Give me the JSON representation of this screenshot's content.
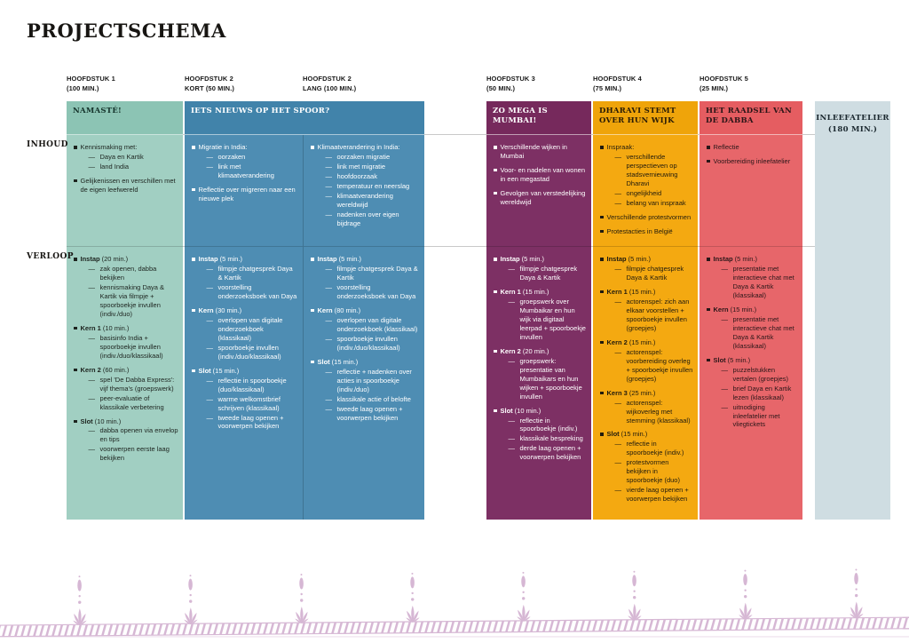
{
  "title": "PROJECTSCHEMA",
  "row_labels": {
    "inhoud": "INHOUD",
    "verloop": "VERLOOP"
  },
  "columns": [
    {
      "id": "h1",
      "header": [
        "HOOFDSTUK 1",
        "(100 MIN.)"
      ],
      "banner": "NAMASTÉ!",
      "colors": {
        "banner_bg": "#8cc4b4",
        "banner_text": "#15332b",
        "body_bg": "#a1cfc2",
        "text": "#1d241f"
      },
      "inhoud": [
        {
          "t": "Kennismaking met:",
          "subs": [
            "Daya en Kartik",
            "land India"
          ]
        },
        {
          "t": "Gelijkenissen en verschillen met de eigen leefwereld",
          "subs": []
        }
      ],
      "verloop": [
        {
          "b": "Instap",
          "t": "(20 min.)",
          "subs": [
            "zak openen, dabba bekijken",
            "kennismaking Daya & Kartik via filmpje + spoorboekje invullen (indiv./duo)"
          ]
        },
        {
          "b": "Kern 1",
          "t": "(10 min.)",
          "subs": [
            "basisinfo India + spoorboekje invullen (indiv./duo/klassikaal)"
          ]
        },
        {
          "b": "Kern 2",
          "t": "(60 min.)",
          "subs": [
            "spel 'De Dabba Express': vijf thema's (groepswerk)",
            "peer-evaluatie of klassikale verbetering"
          ]
        },
        {
          "b": "Slot",
          "t": "(10 min.)",
          "subs": [
            "dabba openen via envelop en tips",
            "voorwerpen eerste laag bekijken"
          ]
        }
      ]
    },
    {
      "id": "h2k",
      "header": [
        "HOOFDSTUK 2",
        "KORT (50 MIN.)"
      ],
      "banner": "IETS NIEUWS OP HET SPOOR?",
      "banner_span": "h2l",
      "colors": {
        "banner_bg": "#4183aa",
        "banner_text": "#ffffff",
        "body_bg": "#4e8db3",
        "text": "#ffffff"
      },
      "inhoud": [
        {
          "t": "Migratie in India:",
          "subs": [
            "oorzaken",
            "link met klimaatverandering"
          ]
        },
        {
          "t": "Reflectie over migreren naar een nieuwe plek",
          "subs": []
        }
      ],
      "verloop": [
        {
          "b": "Instap",
          "t": "(5 min.)",
          "subs": [
            "filmpje chatgesprek Daya & Kartik",
            "voorstelling onderzoeksboek van Daya"
          ]
        },
        {
          "b": "Kern",
          "t": "(30 min.)",
          "subs": [
            "overlopen van digitale onderzoekboek (klassikaal)",
            "spoorboekje invullen (indiv./duo/klassikaal)"
          ]
        },
        {
          "b": "Slot",
          "t": "(15 min.)",
          "subs": [
            "reflectie in spoorboekje (duo/klassikaal)",
            "warme welkomstbrief schrijven (klassikaal)",
            "tweede laag openen + voorwerpen bekijken"
          ]
        }
      ]
    },
    {
      "id": "h2l",
      "header": [
        "HOOFDSTUK 2",
        "LANG (100 MIN.)"
      ],
      "banner": null,
      "colors": {
        "body_bg": "#4e8db3",
        "text": "#ffffff"
      },
      "inhoud": [
        {
          "t": "Klimaatverandering in India:",
          "subs": [
            "oorzaken migratie",
            "link met migratie",
            "hoofdoorzaak",
            "temperatuur en neerslag",
            "klimaatverandering wereldwijd",
            "nadenken over eigen bijdrage"
          ]
        }
      ],
      "verloop": [
        {
          "b": "Instap",
          "t": "(5 min.)",
          "subs": [
            "filmpje chatgesprek Daya & Kartik",
            "voorstelling onderzoeksboek van Daya"
          ]
        },
        {
          "b": "Kern",
          "t": "(80 min.)",
          "subs": [
            "overlopen van digitale onderzoekboek (klassikaal)",
            "spoorboekje invullen (indiv./duo/klassikaal)"
          ]
        },
        {
          "b": "Slot",
          "t": "(15 min.)",
          "subs": [
            "reflectie + nadenken over acties in spoorboekje (indiv./duo)",
            "klassikale actie of belofte",
            "tweede laag openen + voorwerpen bekijken"
          ]
        }
      ]
    },
    {
      "id": "h3",
      "header": [
        "HOOFDSTUK 3",
        "(50 MIN.)"
      ],
      "banner": "ZO MEGA IS MUMBAI!",
      "colors": {
        "banner_bg": "#76295c",
        "banner_text": "#ffffff",
        "body_bg": "#7d3064",
        "text": "#ffffff"
      },
      "inhoud": [
        {
          "t": "Verschillende wijken in Mumbai",
          "subs": []
        },
        {
          "t": "Voor- en nadelen van wonen in een megastad",
          "subs": []
        },
        {
          "t": "Gevolgen van verstedelijking wereldwijd",
          "subs": []
        }
      ],
      "verloop": [
        {
          "b": "Instap",
          "t": "(5 min.)",
          "subs": [
            "filmpje chatgesprek Daya & Kartik"
          ]
        },
        {
          "b": "Kern 1",
          "t": "(15 min.)",
          "subs": [
            "groepswerk over Mumbaikar en hun wijk via digitaal leerpad + spoorboekje invullen"
          ]
        },
        {
          "b": "Kern 2",
          "t": "(20 min.)",
          "subs": [
            "groepswerk: presentatie van Mumbaikars en hun wijken + spoorboekje invullen"
          ]
        },
        {
          "b": "Slot",
          "t": "(10 min.)",
          "subs": [
            "reflectie in spoorboekje (indiv.)",
            "klassikale bespreking",
            "derde laag openen + voorwerpen bekijken"
          ]
        }
      ]
    },
    {
      "id": "h4",
      "header": [
        "HOOFDSTUK 4",
        "(75 MIN.)"
      ],
      "banner": "DHARAVI STEMT OVER HUN WIJK",
      "colors": {
        "banner_bg": "#efa40a",
        "banner_text": "#2b1d06",
        "body_bg": "#f4a911",
        "text": "#211b0e"
      },
      "inhoud": [
        {
          "t": "Inspraak:",
          "subs": [
            "verschillende perspectieven op stadsvernieuwing Dharavi",
            "ongelijkheid",
            "belang van inspraak"
          ]
        },
        {
          "t": "Verschillende protestvormen",
          "subs": []
        },
        {
          "t": "Protestacties in België",
          "subs": []
        }
      ],
      "verloop": [
        {
          "b": "Instap",
          "t": "(5 min.)",
          "subs": [
            "filmpje chatgesprek Daya & Kartik"
          ]
        },
        {
          "b": "Kern 1",
          "t": "(15 min.)",
          "subs": [
            "actorenspel: zich aan elkaar voorstellen + spoorboekje invullen (groepjes)"
          ]
        },
        {
          "b": "Kern 2",
          "t": "(15 min.)",
          "subs": [
            "actorenspel: voorbereiding overleg + spoorboekje invullen (groepjes)"
          ]
        },
        {
          "b": "Kern 3",
          "t": "(25 min.)",
          "subs": [
            "actorenspel: wijkoverleg met stemming (klassikaal)"
          ]
        },
        {
          "b": "Slot",
          "t": "(15 min.)",
          "subs": [
            "reflectie in spoorboekje (indiv.)",
            "protestvormen bekijken in spoorboekje (duo)",
            "vierde laag openen + voorwerpen bekijken"
          ]
        }
      ]
    },
    {
      "id": "h5",
      "header": [
        "HOOFDSTUK 5",
        "(25 MIN.)"
      ],
      "banner": "HET RAADSEL VAN DE DABBA",
      "colors": {
        "banner_bg": "#e55d61",
        "banner_text": "#2a1517",
        "body_bg": "#e7666a",
        "text": "#2a1719"
      },
      "inhoud": [
        {
          "t": "Reflectie",
          "subs": []
        },
        {
          "t": "Voorbereiding inleefatelier",
          "subs": []
        }
      ],
      "verloop": [
        {
          "b": "Instap",
          "t": "(5 min.)",
          "subs": [
            "presentatie met interactieve chat met Daya & Kartik (klassikaal)"
          ]
        },
        {
          "b": "Kern",
          "t": "(15 min.)",
          "subs": [
            "presentatie met interactieve chat met Daya & Kartik (klassikaal)"
          ]
        },
        {
          "b": "Slot",
          "t": "(5 min.)",
          "subs": [
            "puzzelstukken vertalen (groepjes)",
            "brief Daya en Kartik lezen (klassikaal)",
            "uitnodiging inleefatelier met vliegtickets"
          ]
        }
      ]
    },
    {
      "id": "at",
      "header": null,
      "banner": null,
      "inner_title": [
        "INLEEFATELIER",
        "(180 MIN.)"
      ],
      "colors": {
        "body_bg": "#cfdde2",
        "text": "#1c2930"
      }
    }
  ],
  "footer": {
    "description": "hand-drawn railway track with lotus plant motifs",
    "color": "#d6b7d4",
    "motif_count": 8
  }
}
